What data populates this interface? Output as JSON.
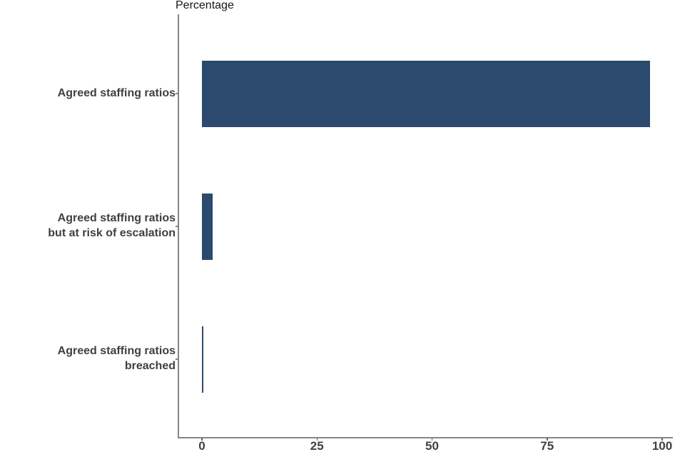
{
  "chart_data": {
    "type": "bar",
    "orientation": "horizontal",
    "title": "Percentage",
    "categories": [
      "Agreed staffing ratios",
      "Agreed staffing ratios but at risk of escalation",
      "Agreed staffing ratios breached"
    ],
    "category_lines": [
      [
        "Agreed staffing ratios"
      ],
      [
        "Agreed staffing ratios",
        "but at risk of escalation"
      ],
      [
        "Agreed staffing ratios",
        "breached"
      ]
    ],
    "values": [
      97.4,
      2.3,
      0.3
    ],
    "x_ticks": [
      0,
      25,
      50,
      75,
      100
    ],
    "xlim": [
      0,
      100
    ],
    "xlabel": "",
    "ylabel": "",
    "grid": false,
    "legend": false,
    "bar_color": "#2b4a6e",
    "axis_color": "#868686",
    "label_color": "#404040",
    "title_color": "#161616"
  }
}
